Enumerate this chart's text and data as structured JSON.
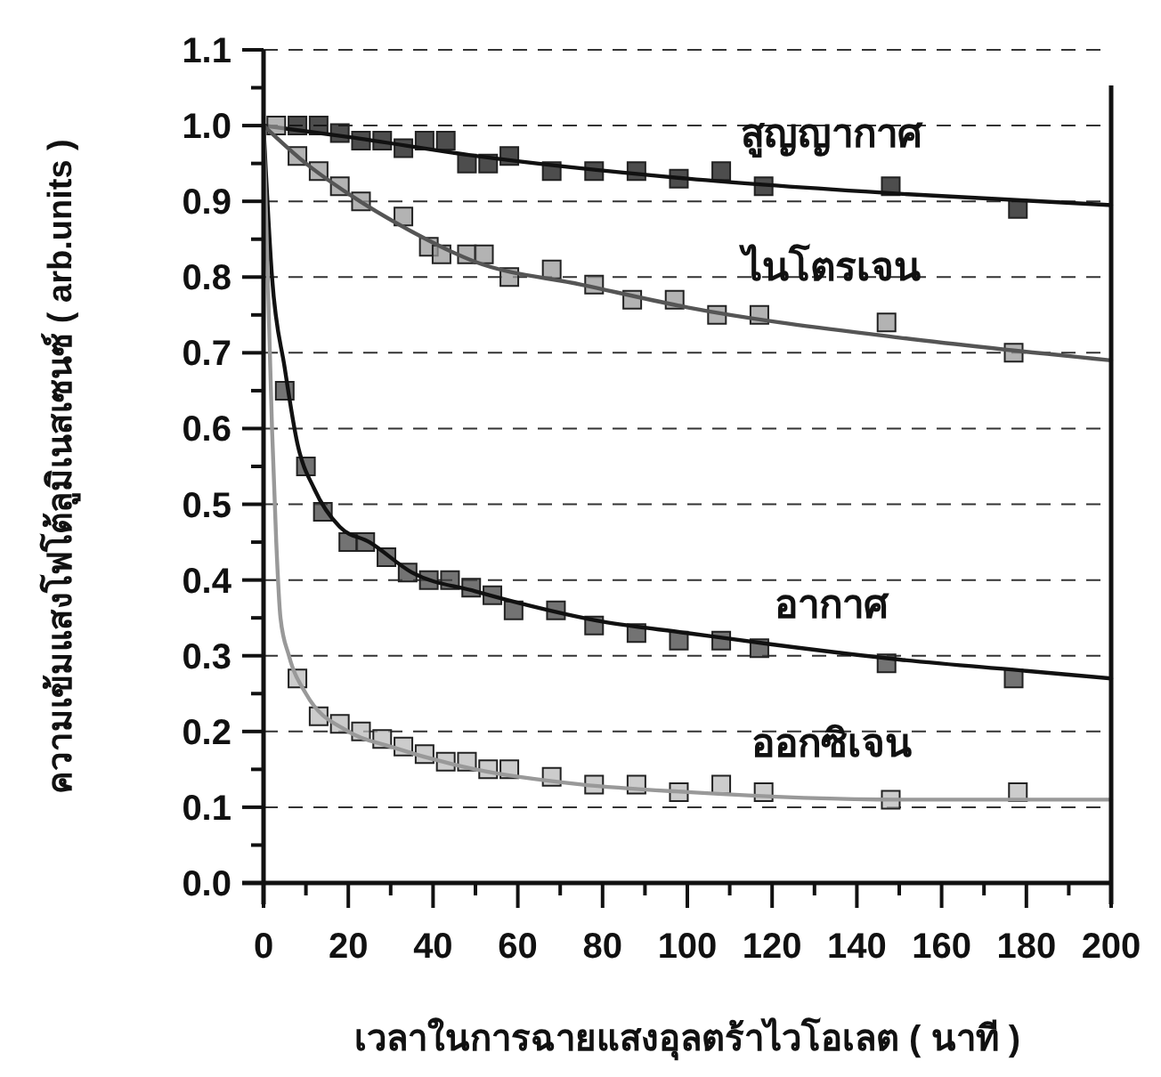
{
  "chart_data": {
    "type": "scatter",
    "xlabel": "เวลาในการฉายแสงอุลตร้าไวโอเลต ( นาที )",
    "ylabel": "ความเข้มแสงโฟโต้ลูมิเนสเซนซ์ ( arb.units )",
    "xlim": [
      0,
      200
    ],
    "ylim": [
      0,
      1.1
    ],
    "xticks": [
      0,
      {
        "value": 10,
        "label": null
      },
      20,
      {
        "value": 30,
        "label": null
      },
      40,
      {
        "value": 50,
        "label": null
      },
      60,
      {
        "value": 70,
        "label": null
      },
      80,
      {
        "value": 90,
        "label": null
      },
      100,
      {
        "value": 110,
        "label": null
      },
      120,
      {
        "value": 130,
        "label": null
      },
      140,
      {
        "value": 150,
        "label": null
      },
      160,
      {
        "value": 170,
        "label": null
      },
      180,
      {
        "value": 190,
        "label": null
      },
      200
    ],
    "yticks": [
      {
        "value": 0,
        "label": "0.0"
      },
      {
        "value": 0.05,
        "label": null
      },
      0.1,
      {
        "value": 0.15,
        "label": null
      },
      0.2,
      {
        "value": 0.25,
        "label": null
      },
      0.3,
      {
        "value": 0.35,
        "label": null
      },
      0.4,
      {
        "value": 0.45,
        "label": null
      },
      0.5,
      {
        "value": 0.55,
        "label": null
      },
      0.6,
      {
        "value": 0.65,
        "label": null
      },
      0.7,
      {
        "value": 0.75,
        "label": null
      },
      0.8,
      {
        "value": 0.85,
        "label": null
      },
      0.9,
      {
        "value": 0.95,
        "label": null
      },
      {
        "value": 1,
        "label": "1.0"
      },
      {
        "value": 1.05,
        "label": null
      },
      1.1
    ],
    "grid": "y",
    "series": [
      {
        "name": "สูญญากาศ",
        "marker": "square",
        "color": "#111111",
        "x": [
          8,
          13,
          18,
          23,
          28,
          33,
          38,
          43,
          48,
          53,
          58,
          68,
          78,
          88,
          98,
          108,
          118,
          148,
          178
        ],
        "values": [
          1.0,
          1.0,
          0.99,
          0.98,
          0.98,
          0.97,
          0.98,
          0.98,
          0.95,
          0.95,
          0.96,
          0.94,
          0.94,
          0.94,
          0.93,
          0.94,
          0.92,
          0.92,
          0.89
        ]
      },
      {
        "type": "line",
        "color": "#111111",
        "x": [
          0,
          20,
          50,
          100,
          150,
          200
        ],
        "values": [
          1.0,
          0.985,
          0.96,
          0.93,
          0.91,
          0.895
        ]
      },
      {
        "name": "ไนโตรเจน",
        "marker": "square",
        "color": "#9a9a9a",
        "x": [
          3,
          8,
          13,
          18,
          23,
          33,
          39,
          42,
          48,
          52,
          58,
          68,
          78,
          87,
          97,
          107,
          117,
          147,
          177
        ],
        "values": [
          1.0,
          0.96,
          0.94,
          0.92,
          0.9,
          0.88,
          0.84,
          0.83,
          0.83,
          0.83,
          0.8,
          0.81,
          0.79,
          0.77,
          0.77,
          0.75,
          0.75,
          0.74,
          0.7
        ]
      },
      {
        "type": "line",
        "color": "#555555",
        "x": [
          0,
          10,
          20,
          35,
          50,
          75,
          100,
          150,
          200
        ],
        "values": [
          1.0,
          0.95,
          0.91,
          0.86,
          0.82,
          0.79,
          0.76,
          0.72,
          0.69
        ]
      },
      {
        "name": "อากาศ",
        "marker": "square",
        "color": "#444444",
        "x": [
          5,
          10,
          14,
          20,
          24,
          29,
          34,
          39,
          44,
          49,
          54,
          59,
          69,
          78,
          88,
          98,
          108,
          117,
          147,
          177
        ],
        "values": [
          0.65,
          0.55,
          0.49,
          0.45,
          0.45,
          0.43,
          0.41,
          0.4,
          0.4,
          0.39,
          0.38,
          0.36,
          0.36,
          0.34,
          0.33,
          0.32,
          0.32,
          0.31,
          0.29,
          0.27
        ]
      },
      {
        "type": "line",
        "color": "#111111",
        "x": [
          0,
          2,
          5,
          8,
          12,
          18,
          25,
          35,
          50,
          60,
          80,
          100,
          120,
          150,
          180,
          200
        ],
        "values": [
          1.0,
          0.8,
          0.68,
          0.58,
          0.52,
          0.47,
          0.45,
          0.41,
          0.385,
          0.37,
          0.345,
          0.33,
          0.315,
          0.295,
          0.28,
          0.27
        ]
      },
      {
        "name": "ออกซิเจน",
        "marker": "square",
        "color": "#bbbbbb",
        "x": [
          8,
          13,
          18,
          23,
          28,
          33,
          38,
          43,
          48,
          53,
          58,
          68,
          78,
          88,
          98,
          108,
          118,
          148,
          178
        ],
        "values": [
          0.27,
          0.22,
          0.21,
          0.2,
          0.19,
          0.18,
          0.17,
          0.16,
          0.16,
          0.15,
          0.15,
          0.14,
          0.13,
          0.13,
          0.12,
          0.13,
          0.12,
          0.11,
          0.12
        ]
      },
      {
        "type": "line",
        "color": "#999999",
        "x": [
          0,
          1,
          2,
          3,
          4,
          6,
          10,
          20,
          30,
          50,
          75,
          100,
          150,
          200
        ],
        "values": [
          1.0,
          0.8,
          0.6,
          0.45,
          0.35,
          0.3,
          0.25,
          0.2,
          0.18,
          0.15,
          0.13,
          0.12,
          0.11,
          0.11
        ]
      }
    ]
  }
}
